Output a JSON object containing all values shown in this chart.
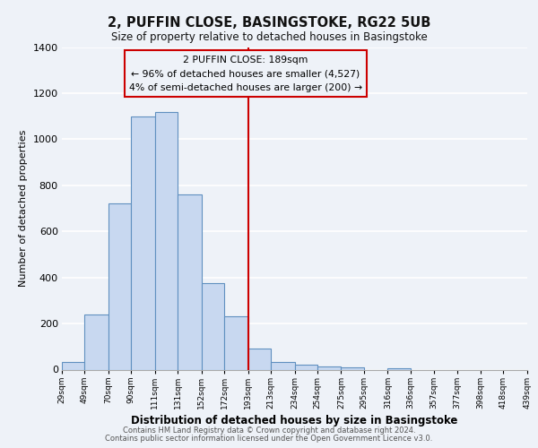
{
  "title": "2, PUFFIN CLOSE, BASINGSTOKE, RG22 5UB",
  "subtitle": "Size of property relative to detached houses in Basingstoke",
  "xlabel": "Distribution of detached houses by size in Basingstoke",
  "ylabel": "Number of detached properties",
  "bar_edges": [
    29,
    49,
    70,
    90,
    111,
    131,
    152,
    172,
    193,
    213,
    234,
    254,
    275,
    295,
    316,
    336,
    357,
    377,
    398,
    418,
    439
  ],
  "bar_heights": [
    35,
    240,
    720,
    1100,
    1120,
    760,
    375,
    230,
    90,
    35,
    20,
    15,
    10,
    0,
    5,
    0,
    0,
    0,
    0,
    0
  ],
  "bar_color": "#c8d8f0",
  "bar_edgecolor": "#6090c0",
  "property_line_x": 193,
  "property_line_color": "#cc0000",
  "annotation_title": "2 PUFFIN CLOSE: 189sqm",
  "annotation_line1": "← 96% of detached houses are smaller (4,527)",
  "annotation_line2": "4% of semi-detached houses are larger (200) →",
  "annotation_box_edgecolor": "#cc0000",
  "ylim": [
    0,
    1400
  ],
  "yticks": [
    0,
    200,
    400,
    600,
    800,
    1000,
    1200,
    1400
  ],
  "tick_labels": [
    "29sqm",
    "49sqm",
    "70sqm",
    "90sqm",
    "111sqm",
    "131sqm",
    "152sqm",
    "172sqm",
    "193sqm",
    "213sqm",
    "234sqm",
    "254sqm",
    "275sqm",
    "295sqm",
    "316sqm",
    "336sqm",
    "357sqm",
    "377sqm",
    "398sqm",
    "418sqm",
    "439sqm"
  ],
  "footer1": "Contains HM Land Registry data © Crown copyright and database right 2024.",
  "footer2": "Contains public sector information licensed under the Open Government Licence v3.0.",
  "bg_color": "#eef2f8",
  "grid_color": "#ffffff"
}
